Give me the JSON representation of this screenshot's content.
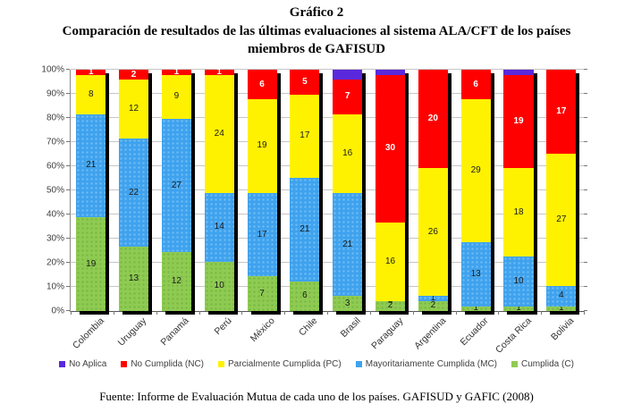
{
  "title": {
    "line1": "Gráfico 2",
    "line2": "Comparación de resultados de las últimas evaluaciones al sistema ALA/CFT de los  países",
    "line3": "miembros de GAFISUD"
  },
  "source": "Fuente: Informe de Evaluación Mutua de cada uno de los países. GAFISUD y GAFIC (2008)",
  "chart_data": {
    "type": "bar",
    "subtype": "stacked-100-percent",
    "title": "Gráfico 2 — Comparación de resultados de las últimas evaluaciones al sistema ALA/CFT de los países miembros de GAFISUD",
    "total_per_category": 49,
    "categories": [
      "Colombia",
      "Uruguay",
      "Panamá",
      "Perú",
      "México",
      "Chile",
      "Brasil",
      "Paraguay",
      "Argentina",
      "Ecuador",
      "Costa Rica",
      "Bolivia"
    ],
    "series": [
      {
        "name": "Cumplida (C)",
        "color": "#8FCB52",
        "dot_color": "#79B843",
        "label_color": "#1A1A1A",
        "show_labels": true,
        "values": [
          19,
          13,
          12,
          10,
          7,
          6,
          3,
          2,
          2,
          1,
          1,
          1
        ]
      },
      {
        "name": "Mayoritariamente Cumplida (MC)",
        "color": "#3FA2EE",
        "dot_color": "#6FBCF5",
        "label_color": "#1A1A1A",
        "show_labels": true,
        "values": [
          21,
          22,
          27,
          14,
          17,
          21,
          21,
          0,
          1,
          13,
          10,
          4
        ]
      },
      {
        "name": "Parcialmente Cumplida (PC)",
        "color": "#FFF200",
        "dot_color": "",
        "label_color": "#1A1A1A",
        "show_labels": true,
        "values": [
          8,
          12,
          9,
          24,
          19,
          17,
          16,
          16,
          26,
          29,
          18,
          27
        ]
      },
      {
        "name": "No Cumplida (NC)",
        "color": "#FF0000",
        "dot_color": "",
        "label_color": "#FFFFFF",
        "show_labels": true,
        "values": [
          1,
          2,
          1,
          1,
          6,
          5,
          7,
          30,
          20,
          6,
          19,
          17
        ]
      },
      {
        "name": "No Aplica",
        "color": "#5A28DC",
        "dot_color": "",
        "label_color": "#FFFFFF",
        "show_labels": false,
        "values": [
          0,
          0,
          0,
          0,
          0,
          0,
          2,
          1,
          0,
          0,
          1,
          0
        ]
      }
    ],
    "legend": [
      {
        "label": "No Aplica",
        "color": "#5A28DC"
      },
      {
        "label": "No Cumplida (NC)",
        "color": "#FF0000"
      },
      {
        "label": "Parcialmente Cumplida (PC)",
        "color": "#FFF200"
      },
      {
        "label": "Mayoritariamente Cumplida (MC)",
        "color": "#3FA2EE"
      },
      {
        "label": "Cumplida (C)",
        "color": "#8FCB52"
      }
    ],
    "y_axis": {
      "ticks": [
        "0%",
        "10%",
        "20%",
        "30%",
        "40%",
        "50%",
        "60%",
        "70%",
        "80%",
        "90%",
        "100%"
      ],
      "min": 0,
      "max": 100,
      "step": 10
    },
    "x_axis_label": "",
    "y_axis_label": "",
    "grid": true,
    "legend_position": "bottom"
  }
}
